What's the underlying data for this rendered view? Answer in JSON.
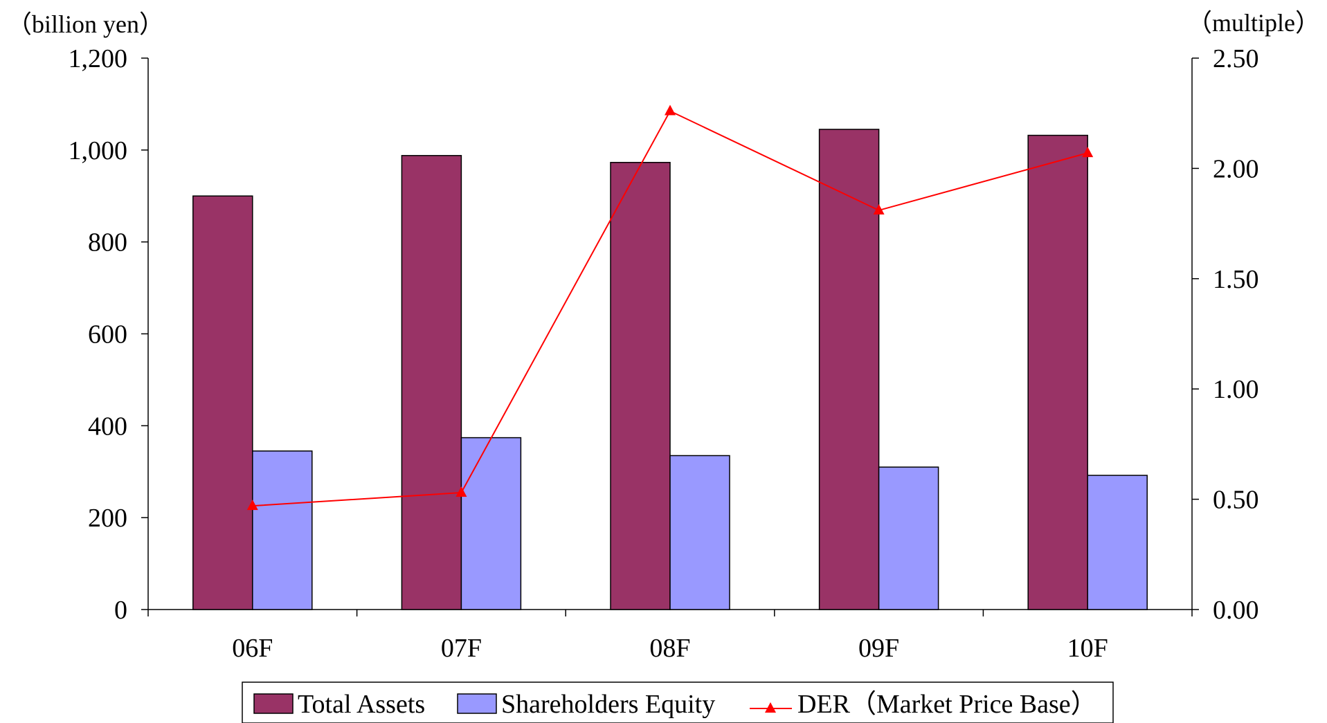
{
  "chart_data": {
    "type": "bar",
    "categories": [
      "06F",
      "07F",
      "08F",
      "09F",
      "10F"
    ],
    "series": [
      {
        "name": "Total Assets",
        "type": "bar",
        "axis": "left",
        "color": "#993366",
        "values": [
          900,
          988,
          973,
          1045,
          1032
        ]
      },
      {
        "name": "Shareholders Equity",
        "type": "bar",
        "axis": "left",
        "color": "#9999ff",
        "values": [
          345,
          374,
          335,
          310,
          292
        ]
      },
      {
        "name": "DER（Market Price Base）",
        "type": "line",
        "axis": "right",
        "color": "#ff0000",
        "marker": "triangle",
        "values": [
          0.47,
          0.53,
          2.26,
          1.81,
          2.07
        ]
      }
    ],
    "y_left": {
      "unit": "（billion yen）",
      "range": [
        0,
        1200
      ],
      "ticks": [
        0,
        200,
        400,
        600,
        800,
        1000,
        1200
      ],
      "tick_labels": [
        "0",
        "200",
        "400",
        "600",
        "800",
        "1,000",
        "1,200"
      ]
    },
    "y_right": {
      "unit": "（multiple）",
      "range": [
        0,
        2.5
      ],
      "ticks": [
        0,
        0.5,
        1.0,
        1.5,
        2.0,
        2.5
      ],
      "tick_labels": [
        "0.00",
        "0.50",
        "1.00",
        "1.50",
        "2.00",
        "2.50"
      ]
    },
    "grid": false,
    "legend_position": "bottom"
  }
}
